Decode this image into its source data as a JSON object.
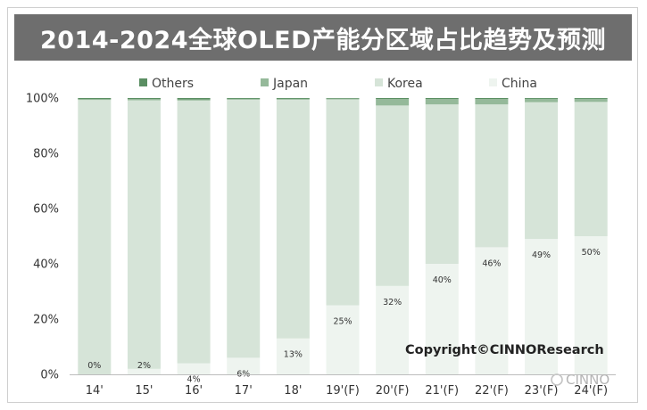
{
  "title": "2014-2024全球OLED产能分区域占比趋势及预测",
  "copyright": "Copyright©CINNOResearch",
  "watermark": "CINNO",
  "colors": {
    "Others": "#5a8e62",
    "Japan": "#95b99a",
    "Korea": "#d6e4d8",
    "China": "#eef4ef"
  },
  "chart_data": {
    "type": "bar",
    "stacked": true,
    "normalized": true,
    "categories": [
      "14'",
      "15'",
      "16'",
      "17'",
      "18'",
      "19'(F)",
      "20'(F)",
      "21'(F)",
      "22'(F)",
      "23'(F)",
      "24'(F)"
    ],
    "series": [
      {
        "name": "China",
        "values": [
          0,
          2,
          4,
          6,
          13,
          25,
          32,
          40,
          46,
          49,
          50
        ]
      },
      {
        "name": "Korea",
        "values": [
          99.3,
          97.2,
          95.1,
          93.4,
          86.4,
          74.5,
          65.3,
          57.7,
          51.7,
          49.5,
          48.6
        ]
      },
      {
        "name": "Japan",
        "values": [
          0.3,
          0.4,
          0.4,
          0.3,
          0.3,
          0.3,
          2.3,
          1.9,
          1.9,
          1.2,
          1.1
        ]
      },
      {
        "name": "Others",
        "values": [
          0.4,
          0.4,
          0.5,
          0.3,
          0.3,
          0.2,
          0.4,
          0.4,
          0.4,
          0.3,
          0.3
        ]
      }
    ],
    "data_labels": [
      "0%",
      "2%",
      "4%",
      "6%",
      "13%",
      "25%",
      "32%",
      "40%",
      "46%",
      "49%",
      "50%"
    ],
    "y_ticks": [
      "0%",
      "20%",
      "40%",
      "60%",
      "80%",
      "100%"
    ],
    "ylim": [
      0,
      100
    ],
    "legend": [
      "Others",
      "Japan",
      "Korea",
      "China"
    ],
    "legend_position": "top",
    "grid": false
  }
}
